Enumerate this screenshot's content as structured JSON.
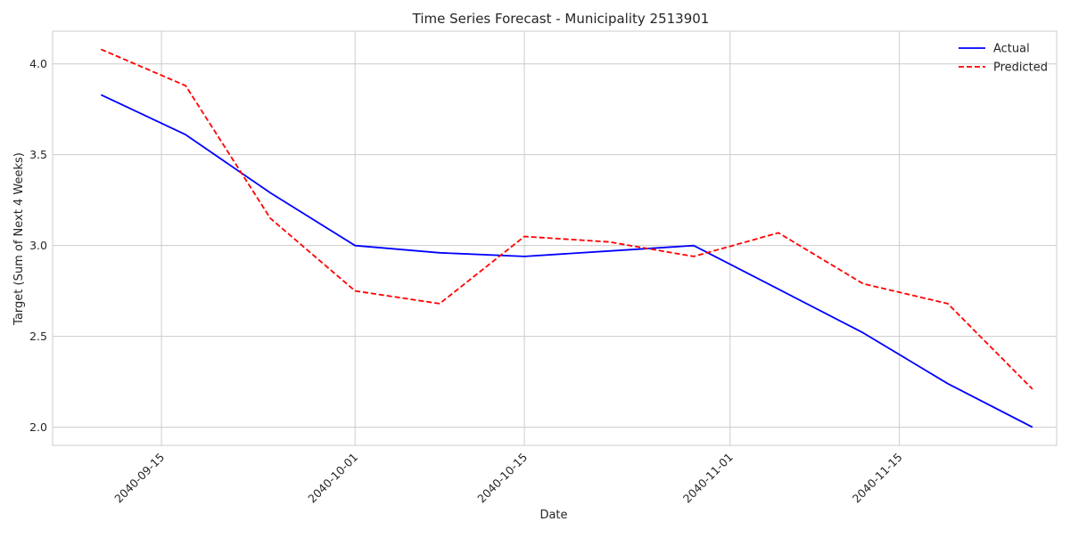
{
  "chart_data": {
    "type": "line",
    "title": "Time Series Forecast - Municipality 2513901",
    "xlabel": "Date",
    "ylabel": "Target (Sum of Next 4 Weeks)",
    "x": [
      "2040-09-10",
      "2040-09-17",
      "2040-09-24",
      "2040-10-01",
      "2040-10-08",
      "2040-10-15",
      "2040-10-22",
      "2040-10-29",
      "2040-11-05",
      "2040-11-12",
      "2040-11-19",
      "2040-11-26"
    ],
    "xlim": [
      "2040-09-06",
      "2040-11-28"
    ],
    "x_ticks": [
      "2040-09-15",
      "2040-10-01",
      "2040-10-15",
      "2040-11-01",
      "2040-11-15"
    ],
    "ylim": [
      1.9,
      4.18
    ],
    "y_ticks": [
      "2.0",
      "2.5",
      "3.0",
      "3.5",
      "4.0"
    ],
    "grid": true,
    "legend_position": "top-right",
    "series": [
      {
        "name": "Actual",
        "color": "#0000ff",
        "style": "solid",
        "values": [
          3.83,
          3.61,
          3.29,
          3.0,
          2.96,
          2.94,
          2.97,
          3.0,
          2.76,
          2.52,
          2.24,
          2.0
        ]
      },
      {
        "name": "Predicted",
        "color": "#ff0000",
        "style": "dashed",
        "values": [
          4.08,
          3.88,
          3.15,
          2.75,
          2.68,
          3.05,
          3.02,
          2.94,
          3.07,
          2.79,
          2.68,
          2.21
        ]
      }
    ]
  }
}
